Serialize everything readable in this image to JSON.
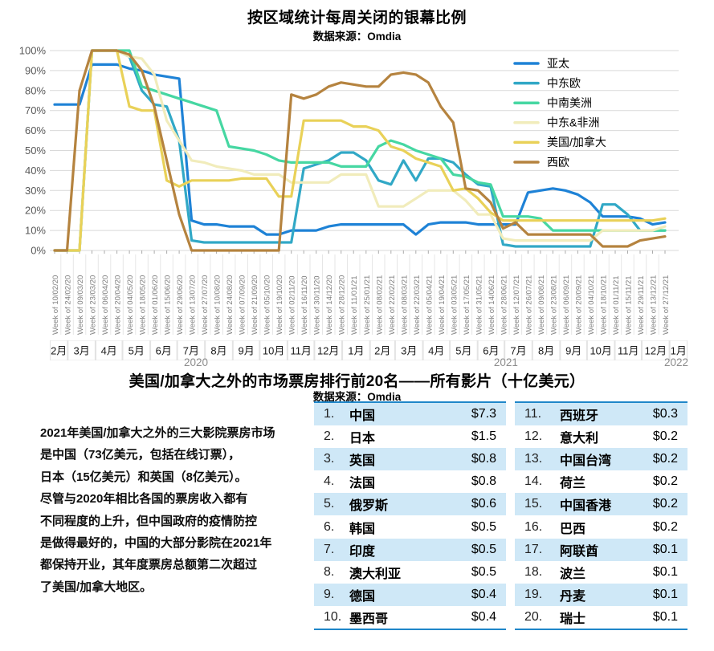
{
  "chart_data": [
    {
      "type": "line",
      "title": "按区域统计每周关闭的银幕比例",
      "subtitle": "数据来源：Omdia",
      "ylim": [
        0,
        100
      ],
      "ytick_step": 10,
      "ytick_suffix": "%",
      "grid": true,
      "legend_position": "top-right",
      "x_labels": [
        "Week of 10/02/20",
        "Week of 24/02/20",
        "Week of 09/03/20",
        "Week of 23/03/20",
        "Week of 06/04/20",
        "Week of 20/04/20",
        "Week of 04/05/20",
        "Week of 18/05/20",
        "Week of 01/06/20",
        "Week of 15/06/20",
        "Week of 29/06/20",
        "Week of 13/07/20",
        "Week of 27/07/20",
        "Week of 10/08/20",
        "Week of 24/08/20",
        "Week of 07/09/20",
        "Week of 21/09/20",
        "Week of 05/10/20",
        "Week of 19/10/20",
        "Week of 02/11/20",
        "Week of 16/11/20",
        "Week of 30/11/20",
        "Week of 14/12/20",
        "Week of 28/12/20",
        "Week of 11/01/21",
        "Week of 25/01/21",
        "Week of 08/02/21",
        "Week of 22/02/21",
        "Week of 08/03/21",
        "Week of 22/03/21",
        "Week of 05/04/21",
        "Week of 19/04/21",
        "Week of 03/05/21",
        "Week of 17/05/21",
        "Week of 31/05/21",
        "Week of 14/06/21",
        "Week of 28/06/21",
        "Week of 12/07/21",
        "Week of 26/07/21",
        "Week of 09/08/21",
        "Week of 23/08/21",
        "Week of 06/09/21",
        "Week of 20/09/21",
        "Week of 04/10/21",
        "Week of 18/10/21",
        "Week of 01/11/21",
        "Week of 15/11/21",
        "Week of 29/11/21",
        "Week of 13/12/21",
        "Week of 27/12/21"
      ],
      "months": [
        {
          "label": "2月",
          "days": 20
        },
        {
          "label": "3月",
          "days": 31
        },
        {
          "label": "4月",
          "days": 30
        },
        {
          "label": "5月",
          "days": 31
        },
        {
          "label": "6月",
          "days": 30
        },
        {
          "label": "7月",
          "days": 31
        },
        {
          "label": "8月",
          "days": 31
        },
        {
          "label": "9月",
          "days": 30
        },
        {
          "label": "10月",
          "days": 31
        },
        {
          "label": "11月",
          "days": 30
        },
        {
          "label": "12月",
          "days": 31
        },
        {
          "label": "1月",
          "days": 31
        },
        {
          "label": "2月",
          "days": 28
        },
        {
          "label": "3月",
          "days": 31
        },
        {
          "label": "4月",
          "days": 30
        },
        {
          "label": "5月",
          "days": 31
        },
        {
          "label": "6月",
          "days": 30
        },
        {
          "label": "7月",
          "days": 31
        },
        {
          "label": "8月",
          "days": 31
        },
        {
          "label": "9月",
          "days": 30
        },
        {
          "label": "10月",
          "days": 31
        },
        {
          "label": "11月",
          "days": 30
        },
        {
          "label": "12月",
          "days": 31
        },
        {
          "label": "1月",
          "days": 20
        }
      ],
      "years": [
        {
          "label": "2020",
          "from": 0,
          "to": 10
        },
        {
          "label": "2021",
          "from": 11,
          "to": 22
        },
        {
          "label": "2022",
          "from": 23,
          "to": 23
        }
      ],
      "series": [
        {
          "name": "亚太",
          "color": "#1e82d6",
          "values": [
            73,
            73,
            73,
            93,
            93,
            93,
            91,
            90,
            88,
            87,
            86,
            15,
            13,
            13,
            12,
            12,
            12,
            8,
            8,
            10,
            10,
            10,
            12,
            13,
            13,
            13,
            13,
            13,
            13,
            8,
            13,
            14,
            14,
            14,
            13,
            13,
            13,
            13,
            29,
            30,
            31,
            30,
            28,
            24,
            17,
            17,
            17,
            16,
            13,
            14
          ]
        },
        {
          "name": "中东欧",
          "color": "#31a8c6",
          "values": [
            0,
            0,
            0,
            100,
            100,
            100,
            97,
            80,
            73,
            72,
            55,
            5,
            4,
            4,
            4,
            4,
            4,
            4,
            4,
            4,
            41,
            43,
            45,
            49,
            49,
            45,
            35,
            33,
            45,
            35,
            46,
            46,
            44,
            38,
            33,
            32,
            3,
            2,
            2,
            2,
            2,
            2,
            2,
            2,
            23,
            23,
            18,
            10,
            10,
            10
          ]
        },
        {
          "name": "中南美洲",
          "color": "#46d7a2",
          "values": [
            0,
            0,
            0,
            100,
            100,
            100,
            100,
            82,
            80,
            78,
            76,
            74,
            72,
            70,
            52,
            51,
            50,
            48,
            45,
            44,
            44,
            44,
            44,
            42,
            42,
            42,
            52,
            55,
            53,
            50,
            48,
            46,
            38,
            37,
            34,
            33,
            17,
            17,
            17,
            16,
            10,
            10,
            10,
            10,
            10,
            10,
            10,
            10,
            10,
            10
          ]
        },
        {
          "name": "中东&非洲",
          "color": "#f1ecbb",
          "values": [
            0,
            0,
            0,
            100,
            100,
            100,
            97,
            96,
            88,
            65,
            55,
            45,
            44,
            42,
            41,
            40,
            38,
            38,
            38,
            34,
            34,
            34,
            34,
            38,
            38,
            38,
            22,
            22,
            22,
            26,
            30,
            30,
            30,
            25,
            18,
            18,
            6,
            5,
            5,
            5,
            5,
            5,
            5,
            5,
            10,
            10,
            10,
            10,
            10,
            12
          ]
        },
        {
          "name": "美国/加拿大",
          "color": "#e9d158",
          "values": [
            0,
            0,
            0,
            100,
            100,
            100,
            72,
            70,
            70,
            35,
            32,
            35,
            35,
            35,
            35,
            36,
            36,
            36,
            27,
            27,
            65,
            65,
            65,
            65,
            62,
            62,
            60,
            52,
            50,
            46,
            44,
            42,
            30,
            31,
            26,
            19,
            15,
            15,
            15,
            15,
            15,
            15,
            15,
            15,
            15,
            15,
            15,
            15,
            15,
            16
          ]
        },
        {
          "name": "西欧",
          "color": "#b5833f",
          "values": [
            0,
            0,
            80,
            100,
            100,
            100,
            98,
            90,
            72,
            45,
            18,
            0,
            0,
            0,
            0,
            0,
            0,
            0,
            0,
            78,
            76,
            78,
            82,
            84,
            83,
            82,
            82,
            88,
            89,
            88,
            84,
            72,
            64,
            31,
            30,
            24,
            11,
            14,
            8,
            8,
            8,
            8,
            8,
            8,
            2,
            2,
            2,
            5,
            6,
            7
          ]
        }
      ],
      "colors": {
        "grid": "#d9d9d9",
        "y_tick": "#595959",
        "x_tick": "#7f7f7f",
        "month_band": "#e3e3e3",
        "month_cell": "#ffffff",
        "month_text": "#1a1a1a",
        "year_text": "#8c8c8c",
        "legend_text": "#000000"
      }
    },
    {
      "type": "table",
      "title": "美国/加拿大之外的市场票房排行前20名——所有影片（十亿美元）",
      "subtitle": "数据来源：Omdia",
      "note": "2021年美国/加拿大之外的三大影院票房市场\n是中国（73亿美元，包括在线订票），\n日本（15亿美元）和英国（8亿美元）。\n尽管与2020年相比各国的票房收入都有\n不同程度的上升，但中国政府的疫情防控\n是做得最好的，中国的大部分影院在2021年\n都保持开业，其年度票房总额第二次超过\n了美国/加拿大地区。",
      "stripe_color": "#cfe8f7",
      "border_color": "#1f86c9",
      "rows": [
        {
          "rank": "1.",
          "market": "中国",
          "value": "$7.3"
        },
        {
          "rank": "2.",
          "market": "日本",
          "value": "$1.5"
        },
        {
          "rank": "3.",
          "market": "英国",
          "value": "$0.8"
        },
        {
          "rank": "4.",
          "market": "法国",
          "value": "$0.8"
        },
        {
          "rank": "5.",
          "market": "俄罗斯",
          "value": "$0.6"
        },
        {
          "rank": "6.",
          "market": "韩国",
          "value": "$0.5"
        },
        {
          "rank": "7.",
          "market": "印度",
          "value": "$0.5"
        },
        {
          "rank": "8.",
          "market": "澳大利亚",
          "value": "$0.5"
        },
        {
          "rank": "9.",
          "market": "德国",
          "value": "$0.4"
        },
        {
          "rank": "10.",
          "market": "墨西哥",
          "value": "$0.4"
        },
        {
          "rank": "11.",
          "market": "西班牙",
          "value": "$0.3"
        },
        {
          "rank": "12.",
          "market": "意大利",
          "value": "$0.2"
        },
        {
          "rank": "13.",
          "market": "中国台湾",
          "value": "$0.2"
        },
        {
          "rank": "14.",
          "market": "荷兰",
          "value": "$0.2"
        },
        {
          "rank": "15.",
          "market": "中国香港",
          "value": "$0.2"
        },
        {
          "rank": "16.",
          "market": "巴西",
          "value": "$0.2"
        },
        {
          "rank": "17.",
          "market": "阿联酋",
          "value": "$0.1"
        },
        {
          "rank": "18.",
          "market": "波兰",
          "value": "$0.1"
        },
        {
          "rank": "19.",
          "market": "丹麦",
          "value": "$0.1"
        },
        {
          "rank": "20.",
          "market": "瑞士",
          "value": "$0.1"
        }
      ]
    }
  ]
}
